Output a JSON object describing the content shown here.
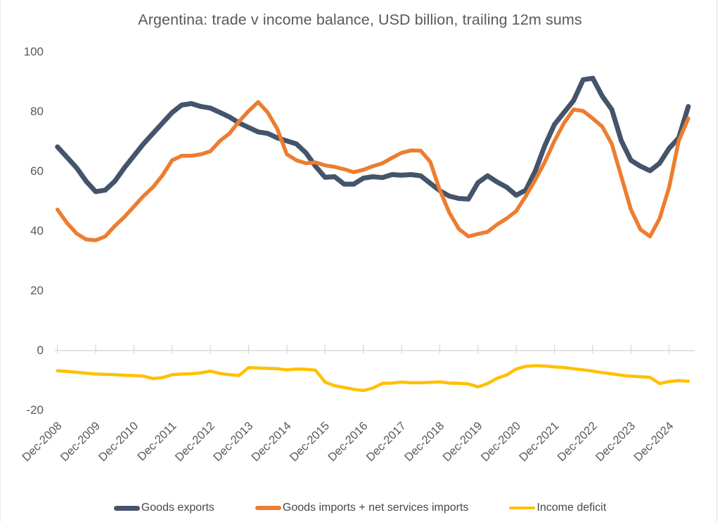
{
  "title": "Argentina: trade v income balance, USD billion, trailing 12m sums",
  "chart_data": {
    "type": "line",
    "title": "Argentina: trade v income balance, USD billion, trailing 12m sums",
    "xlabel": "",
    "ylabel": "",
    "ylim": [
      -20,
      100
    ],
    "y_ticks": [
      100,
      80,
      60,
      40,
      20,
      0,
      -20
    ],
    "grid": "off",
    "legend_position": "bottom",
    "axis_color": "#D9D9D9",
    "label_color": "#595959",
    "x_tick_labels": [
      "Dec-2008",
      "Dec-2009",
      "Dec-2010",
      "Dec-2011",
      "Dec-2012",
      "Dec-2013",
      "Dec-2014",
      "Dec-2015",
      "Dec-2016",
      "Dec-2017",
      "Dec-2018",
      "Dec-2019",
      "Dec-2020",
      "Dec-2021",
      "Dec-2022",
      "Dec-2023",
      "Dec-2024"
    ],
    "categories": [
      "Dec-2008",
      "Mar-2009",
      "Jun-2009",
      "Sep-2009",
      "Dec-2009",
      "Mar-2010",
      "Jun-2010",
      "Sep-2010",
      "Dec-2010",
      "Mar-2011",
      "Jun-2011",
      "Sep-2011",
      "Dec-2011",
      "Mar-2012",
      "Jun-2012",
      "Sep-2012",
      "Dec-2012",
      "Mar-2013",
      "Jun-2013",
      "Sep-2013",
      "Dec-2013",
      "Mar-2014",
      "Jun-2014",
      "Sep-2014",
      "Dec-2014",
      "Mar-2015",
      "Jun-2015",
      "Sep-2015",
      "Dec-2015",
      "Mar-2016",
      "Jun-2016",
      "Sep-2016",
      "Dec-2016",
      "Mar-2017",
      "Jun-2017",
      "Sep-2017",
      "Dec-2017",
      "Mar-2018",
      "Jun-2018",
      "Sep-2018",
      "Dec-2018",
      "Mar-2019",
      "Jun-2019",
      "Sep-2019",
      "Dec-2019",
      "Mar-2020",
      "Jun-2020",
      "Sep-2020",
      "Dec-2020",
      "Mar-2021",
      "Jun-2021",
      "Sep-2021",
      "Dec-2021",
      "Mar-2022",
      "Jun-2022",
      "Sep-2022",
      "Dec-2022",
      "Mar-2023",
      "Jun-2023",
      "Sep-2023",
      "Dec-2023",
      "Mar-2024",
      "Jun-2024",
      "Sep-2024",
      "Dec-2024",
      "Mar-2025",
      "Jun-2025"
    ],
    "series": [
      {
        "id": "goods-exports",
        "name": "Goods exports",
        "color": "#44546A",
        "line_width": 7,
        "values": [
          68,
          64.5,
          61,
          56.5,
          53,
          53.5,
          56.5,
          61,
          65,
          69,
          72.5,
          76,
          79.5,
          82,
          82.5,
          81.5,
          81,
          79.5,
          78,
          76,
          74.5,
          73,
          72.5,
          71,
          70,
          69,
          66,
          61.5,
          57.8,
          58,
          55.5,
          55.5,
          57.5,
          58,
          57.7,
          58.7,
          58.5,
          58.7,
          58.3,
          55.8,
          53.3,
          51.5,
          50.7,
          50.5,
          56,
          58.3,
          56.2,
          54.5,
          51.8,
          53.5,
          60,
          68.5,
          75.5,
          79.5,
          83.5,
          90.5,
          91,
          85,
          80.5,
          70,
          63.5,
          61.5,
          60,
          62.5,
          67.5,
          71,
          81.5
        ]
      },
      {
        "id": "goods-imports-net-services",
        "name": "Goods imports + net services imports",
        "color": "#ED7D31",
        "line_width": 5.5,
        "values": [
          47,
          42.5,
          39,
          37,
          36.7,
          38,
          41.5,
          44.5,
          48,
          51.5,
          54.5,
          58.5,
          63.5,
          65,
          65,
          65.5,
          66.5,
          70,
          72.5,
          76.5,
          80,
          83,
          79.5,
          74,
          65.5,
          63.5,
          62.5,
          62.8,
          61.8,
          61.3,
          60.5,
          59.5,
          60.3,
          61.5,
          62.5,
          64.3,
          66,
          66.8,
          66.7,
          63,
          53.5,
          46,
          40.5,
          38,
          38.8,
          39.5,
          42,
          44,
          46.5,
          51.5,
          57,
          63,
          70,
          76,
          80.5,
          80,
          77.5,
          74.8,
          69,
          58,
          47,
          40.3,
          38,
          44,
          54.5,
          70,
          77.5
        ]
      },
      {
        "id": "income-deficit",
        "name": "Income deficit",
        "color": "#FFC000",
        "line_width": 4.5,
        "values": [
          -7,
          -7.2,
          -7.5,
          -7.8,
          -8.1,
          -8.2,
          -8.3,
          -8.5,
          -8.6,
          -8.8,
          -9.6,
          -9.3,
          -8.3,
          -8.1,
          -8,
          -7.7,
          -7.1,
          -7.9,
          -8.3,
          -8.6,
          -5.9,
          -6.1,
          -6.2,
          -6.3,
          -6.7,
          -6.4,
          -6.5,
          -6.8,
          -10.8,
          -12,
          -12.6,
          -13.2,
          -13.6,
          -12.8,
          -11.2,
          -11.1,
          -10.8,
          -11,
          -11,
          -10.9,
          -10.7,
          -11.1,
          -11.2,
          -11.4,
          -12.4,
          -11.3,
          -9.5,
          -8.4,
          -6.4,
          -5.5,
          -5.3,
          -5.4,
          -5.7,
          -5.9,
          -6.3,
          -6.7,
          -7.1,
          -7.6,
          -8,
          -8.5,
          -8.8,
          -9,
          -9.2,
          -11.3,
          -10.6,
          -10.3,
          -10.5
        ]
      }
    ]
  }
}
